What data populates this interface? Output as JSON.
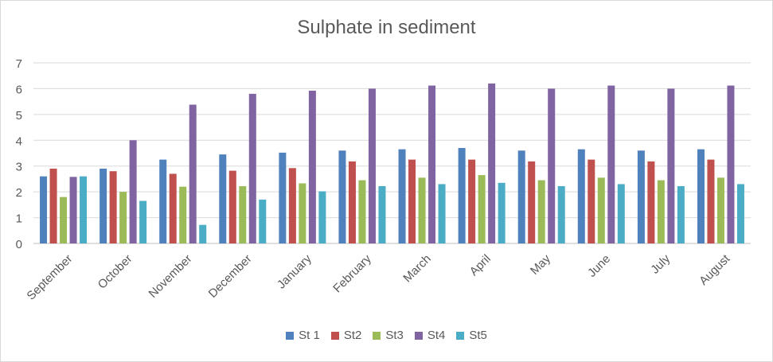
{
  "chart_data": {
    "type": "bar",
    "title": "Sulphate in sediment",
    "xlabel": "",
    "ylabel": "",
    "ylim": [
      0,
      7
    ],
    "yticks": [
      0,
      1,
      2,
      3,
      4,
      5,
      6,
      7
    ],
    "grid": true,
    "legend_position": "bottom",
    "categories": [
      "September",
      "October",
      "November",
      "December",
      "January",
      "February",
      "March",
      "April",
      "May",
      "June",
      "July",
      "August"
    ],
    "series": [
      {
        "name": "St 1",
        "color": "#4f81bd",
        "values": [
          2.6,
          2.9,
          3.25,
          3.45,
          3.52,
          3.6,
          3.65,
          3.7,
          3.6,
          3.65,
          3.6,
          3.65
        ]
      },
      {
        "name": "St2",
        "color": "#c0504d",
        "values": [
          2.9,
          2.8,
          2.7,
          2.82,
          2.92,
          3.18,
          3.25,
          3.25,
          3.18,
          3.25,
          3.18,
          3.25
        ]
      },
      {
        "name": "St3",
        "color": "#9bbb59",
        "values": [
          1.8,
          2.0,
          2.2,
          2.22,
          2.33,
          2.45,
          2.55,
          2.65,
          2.45,
          2.55,
          2.45,
          2.55
        ]
      },
      {
        "name": "St4",
        "color": "#8064a2",
        "values": [
          2.58,
          4.0,
          5.38,
          5.8,
          5.92,
          6.0,
          6.12,
          6.2,
          6.0,
          6.12,
          6.0,
          6.12
        ]
      },
      {
        "name": "St5",
        "color": "#4bacc6",
        "values": [
          2.6,
          1.65,
          0.72,
          1.7,
          2.02,
          2.22,
          2.3,
          2.35,
          2.22,
          2.3,
          2.22,
          2.3
        ]
      }
    ]
  }
}
